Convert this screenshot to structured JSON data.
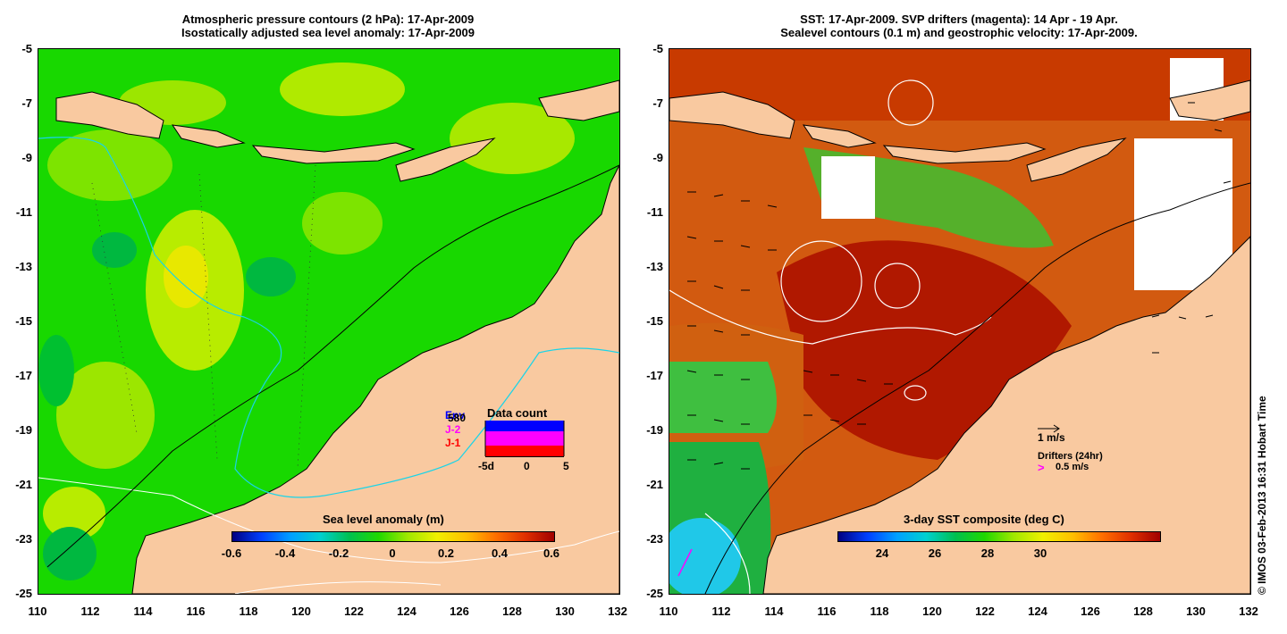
{
  "left_panel": {
    "title_line1": "Atmospheric pressure contours (2 hPa): 17-Apr-2009",
    "title_line2": "Isostatically adjusted sea level anomaly: 17-Apr-2009",
    "y_ticks": [
      "-5",
      "-7",
      "-9",
      "-11",
      "-13",
      "-15",
      "-17",
      "-19",
      "-21",
      "-23",
      "-25"
    ],
    "x_ticks": [
      "110",
      "112",
      "114",
      "116",
      "118",
      "120",
      "122",
      "124",
      "126",
      "128",
      "130",
      "132"
    ],
    "colorbar": {
      "title": "Sea level anomaly (m)",
      "ticks": [
        "-0.6",
        "-0.4",
        "-0.2",
        "0",
        "0.2",
        "0.4",
        "0.6"
      ],
      "range": [
        -0.6,
        0.6
      ]
    },
    "inset": {
      "title": "Data count",
      "series": [
        {
          "name": "Env",
          "color": "#0000ff"
        },
        {
          "name": "580",
          "color": "#0000ff"
        },
        {
          "name": "J-2",
          "color": "#ff00ff"
        },
        {
          "name": "J-1",
          "color": "#ff0000"
        }
      ],
      "x_ticks": [
        "-5d",
        "0",
        "5"
      ]
    }
  },
  "right_panel": {
    "title_line1": "SST: 17-Apr-2009. SVP drifters (magenta): 14 Apr - 19 Apr.",
    "title_line2": "Sealevel contours (0.1 m) and geostrophic velocity: 17-Apr-2009.",
    "y_ticks": [
      "-5",
      "-7",
      "-9",
      "-11",
      "-13",
      "-15",
      "-17",
      "-19",
      "-21",
      "-23",
      "-25"
    ],
    "x_ticks": [
      "110",
      "112",
      "114",
      "116",
      "118",
      "120",
      "122",
      "124",
      "126",
      "128",
      "130",
      "132"
    ],
    "colorbar": {
      "title": "3-day SST composite (deg C)",
      "ticks": [
        "24",
        "26",
        "28",
        "30"
      ]
    },
    "velocity_legend": "1 m/s",
    "drifters_legend": "Drifters (24hr)",
    "drifters_speed": "0.5 m/s"
  },
  "credit": "© IMOS 03-Feb-2013 16:31 Hobart Time",
  "colors": {
    "land": "#f9c9a0",
    "sla_green": "#16d800",
    "sst_red": "#c02000",
    "coast": "#000000"
  }
}
